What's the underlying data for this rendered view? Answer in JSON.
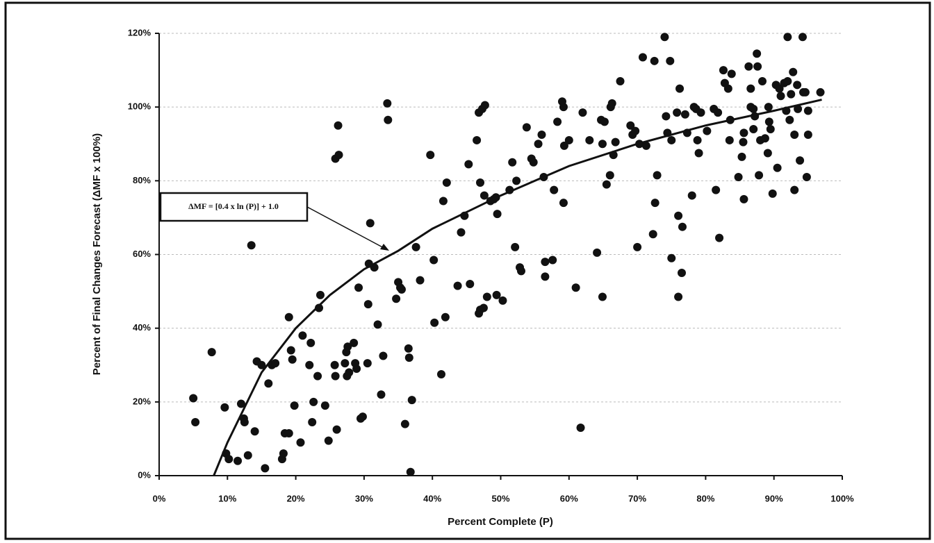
{
  "chart_data": {
    "type": "scatter",
    "x_label": "Percent Complete (P)",
    "y_label": "Percent of Final Changes Forecast (ΔMF x 100%)",
    "annotation": "ΔMF = [0.4 x ln (P)] + 1.0",
    "xlim": [
      0,
      100
    ],
    "ylim": [
      0,
      120
    ],
    "xticks": [
      {
        "value": 0,
        "label": "0%"
      },
      {
        "value": 10,
        "label": "10%"
      },
      {
        "value": 20,
        "label": "20%"
      },
      {
        "value": 30,
        "label": "30%"
      },
      {
        "value": 40,
        "label": "40%"
      },
      {
        "value": 50,
        "label": "50%"
      },
      {
        "value": 60,
        "label": "60%"
      },
      {
        "value": 70,
        "label": "70%"
      },
      {
        "value": 80,
        "label": "80%"
      },
      {
        "value": 90,
        "label": "90%"
      },
      {
        "value": 100,
        "label": "100%"
      }
    ],
    "yticks": [
      {
        "value": 0,
        "label": "0%"
      },
      {
        "value": 20,
        "label": "20%"
      },
      {
        "value": 40,
        "label": "40%"
      },
      {
        "value": 60,
        "label": "60%"
      },
      {
        "value": 80,
        "label": "80%"
      },
      {
        "value": 100,
        "label": "100%"
      },
      {
        "value": 120,
        "label": "120%"
      }
    ],
    "grid": true,
    "series": [
      {
        "type": "scatter",
        "color": "#111111",
        "x": [
          5,
          5.3,
          7.7,
          9.6,
          9.8,
          10.2,
          11.5,
          12,
          12.4,
          12.5,
          13,
          13.5,
          14,
          14.3,
          15,
          15.5,
          16,
          16.5,
          17,
          18,
          18.2,
          18.4,
          19,
          19,
          19.3,
          19.5,
          19.8,
          20.7,
          21,
          22,
          22.2,
          22.4,
          22.6,
          23.2,
          23.4,
          23.6,
          24.3,
          24.8,
          25.7,
          25.8,
          26,
          25.8,
          26.2,
          26.3,
          27.2,
          27.4,
          27.6,
          27.8,
          27.5,
          28.5,
          28.7,
          28.9,
          29.2,
          29.5,
          29.8,
          30.5,
          30.6,
          30.7,
          30.9,
          31.5,
          32,
          32.5,
          32.8,
          33.4,
          33.5,
          34.7,
          35,
          35.3,
          35.5,
          36,
          36.5,
          36.6,
          36.8,
          37,
          37.6,
          38.2,
          39.7,
          40.2,
          40.3,
          41.3,
          41.6,
          41.9,
          42.1,
          43.7,
          44.2,
          44.7,
          45.3,
          45.5,
          46.5,
          46.8,
          46.8,
          47,
          47,
          47.3,
          47.5,
          47.7,
          47.6,
          48,
          48.5,
          49,
          49.3,
          49.5,
          49.4,
          50.3,
          51.3,
          51.7,
          52.1,
          52.3,
          52.8,
          53,
          53.8,
          54.5,
          54.8,
          55.5,
          56,
          56.3,
          56.5,
          56.5,
          57.6,
          57.8,
          58.3,
          59,
          59.2,
          59.2,
          59.3,
          60,
          61,
          61.7,
          62,
          63,
          64.1,
          64.7,
          64.9,
          64.9,
          65.2,
          65.5,
          66,
          66.1,
          66.3,
          66.5,
          66.8,
          67.5,
          69,
          69.3,
          69.7,
          70,
          70.3,
          70.8,
          71.3,
          72.3,
          72.5,
          72.6,
          72.9,
          74,
          74.2,
          74.4,
          74.8,
          75,
          75,
          75.8,
          76,
          76,
          76.2,
          76.5,
          76.6,
          77,
          77.3,
          78,
          78.3,
          78.6,
          78.8,
          79,
          79.3,
          80.2,
          81.2,
          81.5,
          81.8,
          82,
          82.6,
          82.8,
          83.3,
          83.5,
          83.6,
          83.8,
          84.8,
          85.3,
          85.5,
          85.6,
          85.6,
          86.3,
          86.6,
          86.6,
          87,
          87,
          87.2,
          87.5,
          87.6,
          87.8,
          88,
          88.3,
          88.7,
          89.1,
          89.2,
          89.3,
          89.5,
          89.8,
          90.3,
          90.5,
          90.8,
          91,
          91.5,
          91.8,
          92,
          92,
          92.3,
          92.5,
          92.8,
          93,
          93,
          93.4,
          93.5,
          93.8,
          94.2,
          94.3,
          94.6,
          94.8,
          95,
          95,
          96.8
        ],
        "values": [
          21,
          14.5,
          33.5,
          18.5,
          6,
          4.5,
          4,
          19.5,
          15.5,
          14.5,
          5.5,
          62.5,
          12,
          31,
          30,
          2,
          25,
          30,
          30.5,
          4.5,
          6,
          11.5,
          11.5,
          43,
          34,
          31.5,
          19,
          9,
          38,
          30,
          36,
          14.5,
          20,
          27,
          45.5,
          49,
          19,
          9.5,
          30,
          27,
          12.5,
          86,
          95,
          87,
          30.5,
          33.5,
          35,
          28,
          27,
          36,
          30.5,
          29,
          51,
          15.5,
          16,
          30.5,
          46.5,
          57.5,
          68.5,
          56.5,
          41,
          22,
          32.5,
          101,
          96.5,
          48,
          52.5,
          51,
          50.5,
          14,
          34.5,
          32,
          1,
          20.5,
          62,
          53,
          87,
          58.5,
          41.5,
          27.5,
          74.5,
          43,
          79.5,
          51.5,
          66,
          70.5,
          84.5,
          52,
          91,
          98.5,
          44,
          79.5,
          45,
          99.5,
          45.5,
          100.5,
          76,
          48.5,
          74.5,
          75,
          75.5,
          71,
          49,
          47.5,
          77.5,
          85,
          62,
          80,
          56.5,
          55.5,
          94.5,
          86,
          85,
          90,
          92.5,
          81,
          58,
          54,
          58.5,
          77.5,
          96,
          101.5,
          100,
          74,
          89.5,
          91,
          51,
          13,
          98.5,
          91,
          60.5,
          96.5,
          90,
          48.5,
          96,
          79,
          81.5,
          100,
          101,
          87,
          90.5,
          107,
          95,
          92.5,
          93.5,
          62,
          90,
          113.5,
          89.5,
          65.5,
          112.5,
          74,
          81.5,
          119,
          97.5,
          93,
          112.5,
          59,
          91,
          98.5,
          70.5,
          48.5,
          105,
          55,
          67.5,
          98,
          93,
          76,
          100,
          99.5,
          91,
          87.5,
          98.5,
          93.5,
          99.5,
          77.5,
          98.5,
          64.5,
          110,
          106.5,
          105,
          91,
          96.5,
          109,
          81,
          86.5,
          90.5,
          93,
          75,
          111,
          105,
          100,
          99.5,
          94,
          97.5,
          114.5,
          111,
          81.5,
          91,
          107,
          91.5,
          87.5,
          100,
          96,
          94,
          76.5,
          106,
          83.5,
          105,
          103,
          106.5,
          99,
          107,
          119,
          96.5,
          103.5,
          109.5,
          92.5,
          77.5,
          106,
          99.5,
          85.5,
          119,
          104,
          104,
          81,
          99,
          92.5,
          104
        ]
      },
      {
        "type": "line",
        "color": "#111111",
        "x": [
          8,
          10,
          15,
          20,
          25,
          30,
          35,
          40,
          50,
          60,
          70,
          80,
          90,
          97
        ],
        "values": [
          0,
          9,
          28,
          40,
          49,
          56,
          61,
          67,
          76,
          84,
          90,
          95,
          99,
          102
        ]
      }
    ]
  }
}
